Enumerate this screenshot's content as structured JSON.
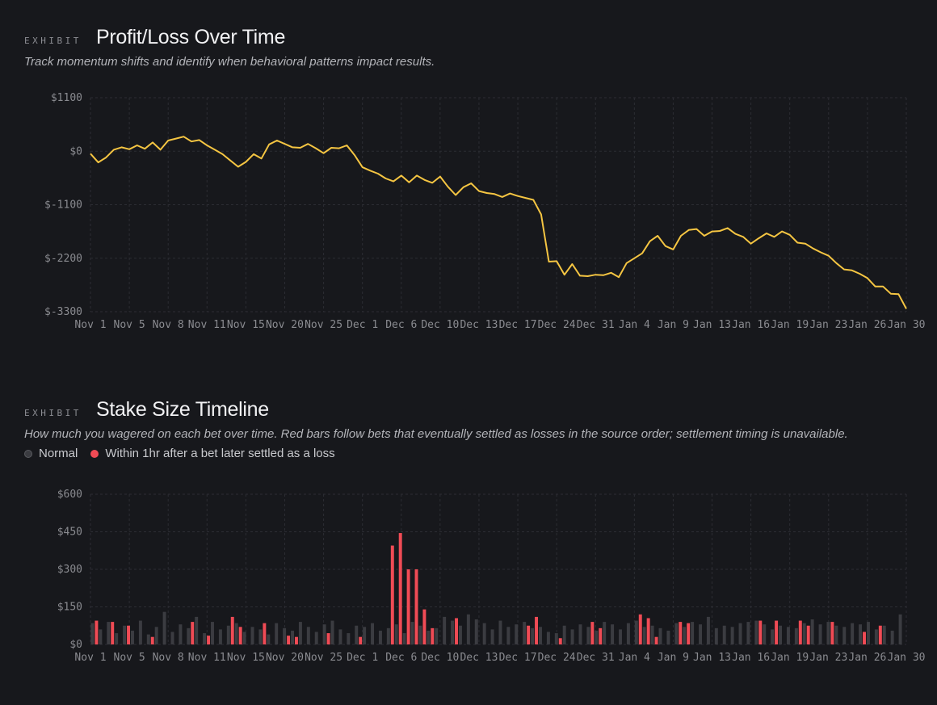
{
  "sections": {
    "pnl": {
      "eyebrow": "EXHIBIT",
      "title": "Profit/Loss Over Time",
      "subtitle": "Track momentum shifts and identify when behavioral patterns impact results."
    },
    "stake": {
      "eyebrow": "EXHIBIT",
      "title": "Stake Size Timeline",
      "subtitle": "How much you wagered on each bet over time. Red bars follow bets that eventually settled as losses in the source order; settlement timing is unavailable.",
      "legend": [
        {
          "label": "Normal",
          "color": "#3b3c41"
        },
        {
          "label": "Within 1hr after a bet later settled as a loss",
          "color": "#f04b55"
        }
      ]
    }
  },
  "chart_data": [
    {
      "type": "line",
      "color": "#f5c542",
      "grid": true,
      "ylim": [
        -3300,
        1100
      ],
      "y_ticks": [
        1100,
        0,
        -1100,
        -2200,
        -3300
      ],
      "y_tick_labels": [
        "$1100",
        "$0",
        "$-1100",
        "$-2200",
        "$-3300"
      ],
      "x_tick_labels": [
        "Nov 1",
        "Nov 5",
        "Nov 8",
        "Nov 11",
        "Nov 15",
        "Nov 20",
        "Nov 25",
        "Dec 1",
        "Dec 6",
        "Dec 10",
        "Dec 13",
        "Dec 17",
        "Dec 24",
        "Dec 31",
        "Jan 4",
        "Jan 9",
        "Jan 13",
        "Jan 16",
        "Jan 19",
        "Jan 23",
        "Jan 26",
        "Jan 30"
      ],
      "x_range": [
        "Nov 1",
        "Jan 30"
      ],
      "values": [
        -50,
        -230,
        -130,
        30,
        80,
        40,
        120,
        50,
        180,
        30,
        220,
        260,
        300,
        200,
        230,
        120,
        30,
        -60,
        -190,
        -320,
        -220,
        -60,
        -150,
        140,
        220,
        150,
        80,
        70,
        150,
        60,
        -40,
        70,
        60,
        120,
        -80,
        -330,
        -400,
        -460,
        -560,
        -620,
        -500,
        -640,
        -500,
        -590,
        -650,
        -520,
        -730,
        -900,
        -740,
        -660,
        -820,
        -860,
        -880,
        -940,
        -870,
        -920,
        -960,
        -1000,
        -1300,
        -2270,
        -2260,
        -2540,
        -2320,
        -2560,
        -2570,
        -2540,
        -2550,
        -2500,
        -2590,
        -2300,
        -2200,
        -2100,
        -1850,
        -1740,
        -1950,
        -2020,
        -1740,
        -1620,
        -1600,
        -1740,
        -1650,
        -1640,
        -1580,
        -1700,
        -1760,
        -1900,
        -1790,
        -1690,
        -1760,
        -1650,
        -1720,
        -1880,
        -1900,
        -2000,
        -2080,
        -2150,
        -2300,
        -2430,
        -2450,
        -2520,
        -2610,
        -2780,
        -2780,
        -2930,
        -2940,
        -3240
      ]
    },
    {
      "type": "bar",
      "grid": true,
      "ylim": [
        0,
        600
      ],
      "y_ticks": [
        600,
        450,
        300,
        150,
        0
      ],
      "y_tick_labels": [
        "$600",
        "$450",
        "$300",
        "$150",
        "$0"
      ],
      "x_tick_labels": [
        "Nov 1",
        "Nov 5",
        "Nov 8",
        "Nov 11",
        "Nov 15",
        "Nov 20",
        "Nov 25",
        "Dec 1",
        "Dec 6",
        "Dec 10",
        "Dec 13",
        "Dec 17",
        "Dec 24",
        "Dec 31",
        "Jan 4",
        "Jan 9",
        "Jan 13",
        "Jan 16",
        "Jan 19",
        "Jan 23",
        "Jan 26",
        "Jan 30"
      ],
      "x_range": [
        "Nov 1",
        "Jan 30"
      ],
      "colors": {
        "normal": "#3b3c41",
        "loss": "#f04b55"
      },
      "series": [
        {
          "name": "Normal",
          "values": [
            85,
            60,
            90,
            45,
            75,
            55,
            95,
            40,
            70,
            130,
            50,
            80,
            65,
            110,
            45,
            90,
            60,
            75,
            85,
            50,
            70,
            60,
            40,
            85,
            65,
            55,
            90,
            70,
            50,
            80,
            95,
            60,
            45,
            75,
            70,
            85,
            55,
            65,
            80,
            45,
            90,
            75,
            55,
            65,
            110,
            95,
            75,
            120,
            100,
            85,
            60,
            95,
            70,
            80,
            90,
            65,
            70,
            50,
            45,
            75,
            60,
            80,
            70,
            55,
            90,
            80,
            60,
            85,
            95,
            70,
            75,
            65,
            55,
            85,
            70,
            90,
            80,
            110,
            65,
            75,
            70,
            85,
            90,
            95,
            80,
            60,
            75,
            70,
            65,
            85,
            100,
            80,
            90,
            75,
            70,
            85,
            80,
            90,
            60,
            75,
            55,
            120
          ]
        },
        {
          "name": "Within 1hr after a bet later settled as a loss",
          "values": [
            95,
            0,
            90,
            0,
            75,
            0,
            0,
            30,
            0,
            0,
            0,
            0,
            90,
            0,
            35,
            0,
            0,
            110,
            70,
            0,
            0,
            85,
            0,
            0,
            35,
            30,
            0,
            0,
            0,
            45,
            0,
            0,
            0,
            30,
            0,
            0,
            0,
            395,
            445,
            300,
            300,
            140,
            65,
            0,
            0,
            105,
            0,
            0,
            0,
            0,
            0,
            0,
            0,
            0,
            75,
            110,
            0,
            0,
            25,
            0,
            0,
            0,
            90,
            65,
            0,
            0,
            0,
            0,
            120,
            105,
            30,
            0,
            0,
            90,
            85,
            0,
            0,
            0,
            0,
            0,
            0,
            0,
            0,
            95,
            0,
            95,
            0,
            0,
            95,
            75,
            0,
            0,
            90,
            0,
            0,
            0,
            50,
            0,
            75,
            0,
            0,
            0
          ]
        }
      ]
    }
  ]
}
